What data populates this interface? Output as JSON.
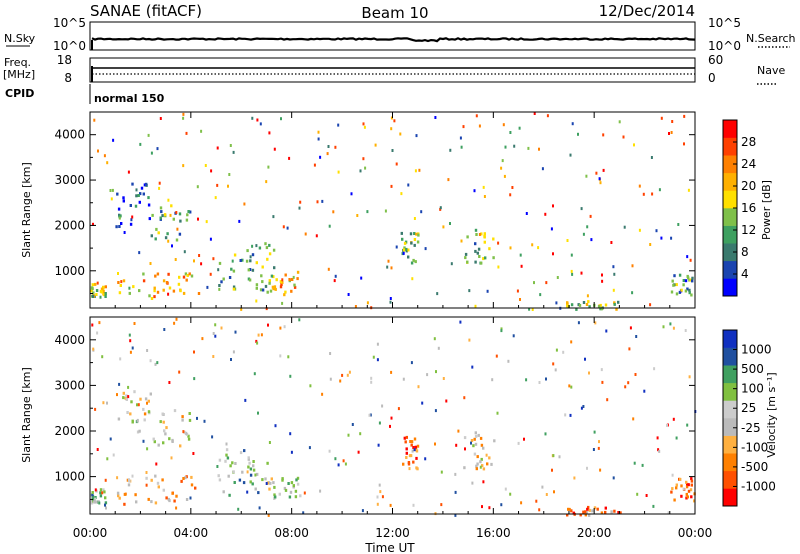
{
  "header": {
    "radar": "SANAE (fitACF)",
    "beam": "Beam 10",
    "date": "12/Dec/2014"
  },
  "top_panels": {
    "nsky_label": "N.Sky",
    "nsky_ticks": [
      "10^5",
      "10^0"
    ],
    "nsearch_label": "N.Search",
    "nsearch_ticks": [
      "10^5",
      "10^0"
    ],
    "freq_label": "Freq.",
    "freq_unit": "[MHz]",
    "freq_ticks": [
      "18",
      "8"
    ],
    "nave_label": "Nave",
    "nave_ticks": [
      "60",
      "0"
    ],
    "cpid_label": "CPID",
    "cpid_value": "normal 150"
  },
  "colors": {
    "power": [
      "#0000ff",
      "#1a44b0",
      "#3a7a6e",
      "#3ea060",
      "#7fc04a",
      "#ffe000",
      "#ffb000",
      "#ff8000",
      "#ff4000",
      "#ff0000"
    ],
    "velocity": [
      "#ff0000",
      "#ff5000",
      "#ff8000",
      "#ffb040",
      "#bbbbbb",
      "#cccccc",
      "#80c040",
      "#40a060",
      "#2050a0",
      "#1030c0"
    ]
  },
  "chart_data": [
    {
      "type": "heatmap",
      "panel": "power",
      "ylabel": "Slant Range [km]",
      "ylim": [
        180,
        4500
      ],
      "yticks": [
        "1000",
        "2000",
        "3000",
        "4000"
      ],
      "xlim": [
        0,
        24
      ],
      "colorbar_label": "Power [dB]",
      "colorbar_ticks": [
        "28",
        "24",
        "20",
        "16",
        "12",
        "8",
        "4"
      ],
      "regions": [
        {
          "t0": 1.0,
          "t1": 2.4,
          "r0": 2000,
          "r1": 2950,
          "level": 0.15
        },
        {
          "t0": 2.4,
          "t1": 4.0,
          "r0": 1700,
          "r1": 2500,
          "level": 0.3
        },
        {
          "t0": 0.0,
          "t1": 0.6,
          "r0": 450,
          "r1": 750,
          "level": 0.5
        },
        {
          "t0": 1.0,
          "t1": 4.3,
          "r0": 400,
          "r1": 1050,
          "level": 0.65
        },
        {
          "t0": 5.0,
          "t1": 7.3,
          "r0": 600,
          "r1": 1650,
          "level": 0.35
        },
        {
          "t0": 7.0,
          "t1": 8.3,
          "r0": 500,
          "r1": 1000,
          "level": 0.6
        },
        {
          "t0": 12.3,
          "t1": 13.0,
          "r0": 1200,
          "r1": 1900,
          "level": 0.45
        },
        {
          "t0": 14.8,
          "t1": 16.0,
          "r0": 1200,
          "r1": 2000,
          "level": 0.4
        },
        {
          "t0": 18.8,
          "t1": 21.0,
          "r0": 180,
          "r1": 360,
          "level": 0.45
        },
        {
          "t0": 23.0,
          "t1": 24.0,
          "r0": 500,
          "r1": 1000,
          "level": 0.3
        }
      ]
    },
    {
      "type": "heatmap",
      "panel": "velocity",
      "xlabel": "Time UT",
      "xticks": [
        "00:00",
        "04:00",
        "08:00",
        "12:00",
        "16:00",
        "20:00",
        "00:00"
      ],
      "ylabel": "Slant Range [km]",
      "ylim": [
        180,
        4500
      ],
      "yticks": [
        "1000",
        "2000",
        "3000",
        "4000"
      ],
      "xlim": [
        0,
        24
      ],
      "colorbar_label": "Velocity [m s⁻¹]",
      "colorbar_ticks": [
        "1000",
        "500",
        "100",
        "25",
        "-25",
        "-100",
        "-500",
        "-1000"
      ],
      "regions": [
        {
          "t0": 1.0,
          "t1": 2.4,
          "r0": 2000,
          "r1": 2950,
          "level": 0.5
        },
        {
          "t0": 2.4,
          "t1": 4.0,
          "r0": 1700,
          "r1": 2500,
          "level": 0.5
        },
        {
          "t0": 0.0,
          "t1": 0.6,
          "r0": 450,
          "r1": 750,
          "level": 0.6
        },
        {
          "t0": 1.0,
          "t1": 4.3,
          "r0": 400,
          "r1": 1050,
          "level": 0.35
        },
        {
          "t0": 5.0,
          "t1": 7.3,
          "r0": 600,
          "r1": 1650,
          "level": 0.65
        },
        {
          "t0": 7.0,
          "t1": 8.3,
          "r0": 500,
          "r1": 1000,
          "level": 0.55
        },
        {
          "t0": 12.3,
          "t1": 13.0,
          "r0": 1200,
          "r1": 1900,
          "level": 0.15
        },
        {
          "t0": 14.8,
          "t1": 16.0,
          "r0": 1200,
          "r1": 2000,
          "level": 0.45
        },
        {
          "t0": 18.8,
          "t1": 21.0,
          "r0": 180,
          "r1": 360,
          "level": 0.25
        },
        {
          "t0": 23.0,
          "t1": 24.0,
          "r0": 500,
          "r1": 1000,
          "level": 0.2
        }
      ]
    }
  ]
}
